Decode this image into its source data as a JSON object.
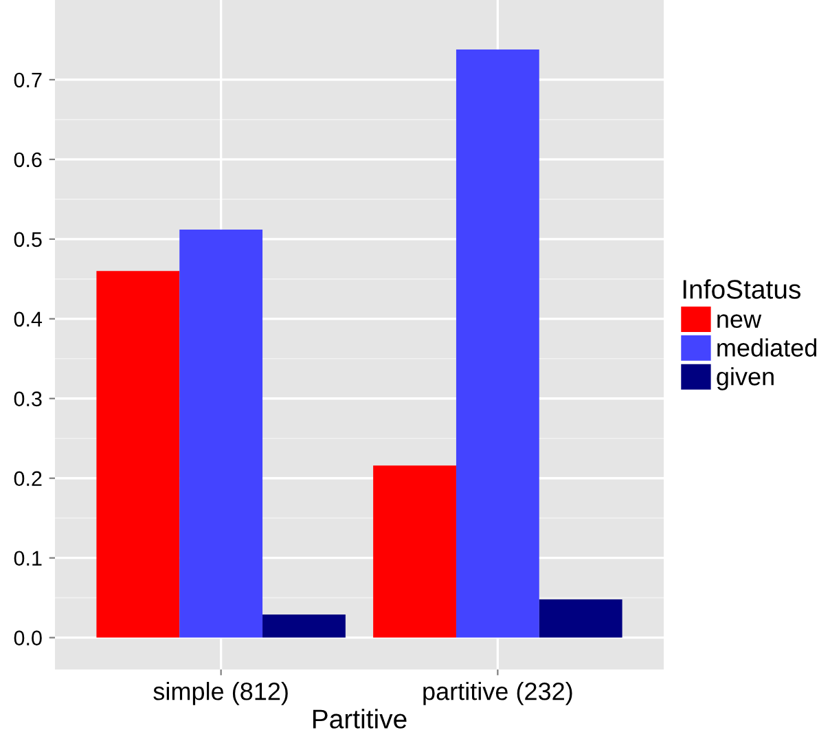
{
  "chart_data": {
    "type": "bar",
    "xlabel": "Partitive",
    "legend_title": "InfoStatus",
    "categories": [
      "simple (812)",
      "partitive (232)"
    ],
    "series": [
      {
        "name": "new",
        "color": "#ff0000",
        "values": [
          0.46,
          0.216
        ]
      },
      {
        "name": "mediated",
        "color": "#4444ff",
        "values": [
          0.512,
          0.738
        ]
      },
      {
        "name": "given",
        "color": "#000080",
        "values": [
          0.029,
          0.048
        ]
      }
    ],
    "ylim": [
      -0.04,
      0.8
    ],
    "yticks": [
      {
        "value": 0,
        "label": "0.0"
      },
      0.1,
      0.2,
      0.3,
      0.4,
      0.5,
      0.6,
      0.7
    ],
    "grid": true,
    "legend": "right"
  }
}
